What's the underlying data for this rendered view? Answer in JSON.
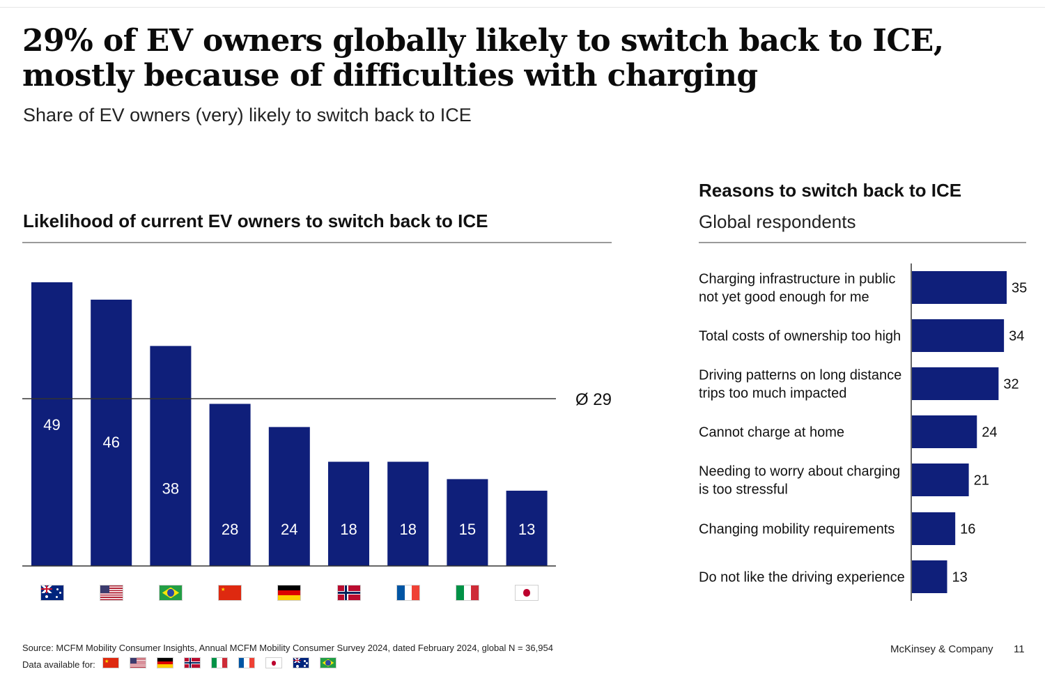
{
  "header": {
    "title": "29% of EV owners globally likely to switch back to ICE, mostly because of difficulties with charging",
    "subtitle": "Share of EV owners (very) likely to switch back to ICE"
  },
  "colors": {
    "bar": "#0f1f7a",
    "axis": "#333333",
    "rule": "#9a9a9a"
  },
  "chart_data": [
    {
      "type": "bar",
      "title": "Likelihood of current EV owners to switch back to ICE",
      "categories": [
        "australia-flag",
        "usa-flag",
        "brazil-flag",
        "china-flag",
        "germany-flag",
        "norway-flag",
        "france-flag",
        "italy-flag",
        "japan-flag"
      ],
      "values": [
        49,
        46,
        38,
        28,
        24,
        18,
        18,
        15,
        13
      ],
      "ylim": [
        0,
        49
      ],
      "average": 29,
      "average_label": "Ø 29",
      "grid": false
    },
    {
      "type": "bar",
      "orientation": "horizontal",
      "title": "Reasons to switch back to ICE",
      "subtitle": "Global respondents",
      "categories": [
        [
          "Charging infrastructure in public",
          "not yet good enough for me"
        ],
        [
          "Total costs of ownership too high"
        ],
        [
          "Driving patterns on long distance",
          "trips too much impacted"
        ],
        [
          "Cannot charge at home"
        ],
        [
          "Needing to worry about charging",
          "is too stressful"
        ],
        [
          "Changing mobility requirements"
        ],
        [
          "Do not like the driving experience"
        ]
      ],
      "values": [
        35,
        34,
        32,
        24,
        21,
        16,
        13
      ],
      "xlim": [
        0,
        35
      ],
      "grid": false
    }
  ],
  "footer": {
    "source": "Source: MCFM Mobility Consumer Insights, Annual MCFM Mobility Consumer Survey 2024, dated February 2024, global N = 36,954",
    "data_available_label": "Data available for:",
    "data_available_flags": [
      "china-flag",
      "usa-flag",
      "germany-flag",
      "norway-flag",
      "italy-flag",
      "france-flag",
      "japan-flag",
      "australia-flag",
      "brazil-flag"
    ],
    "company": "McKinsey & Company",
    "page_number": "11"
  }
}
